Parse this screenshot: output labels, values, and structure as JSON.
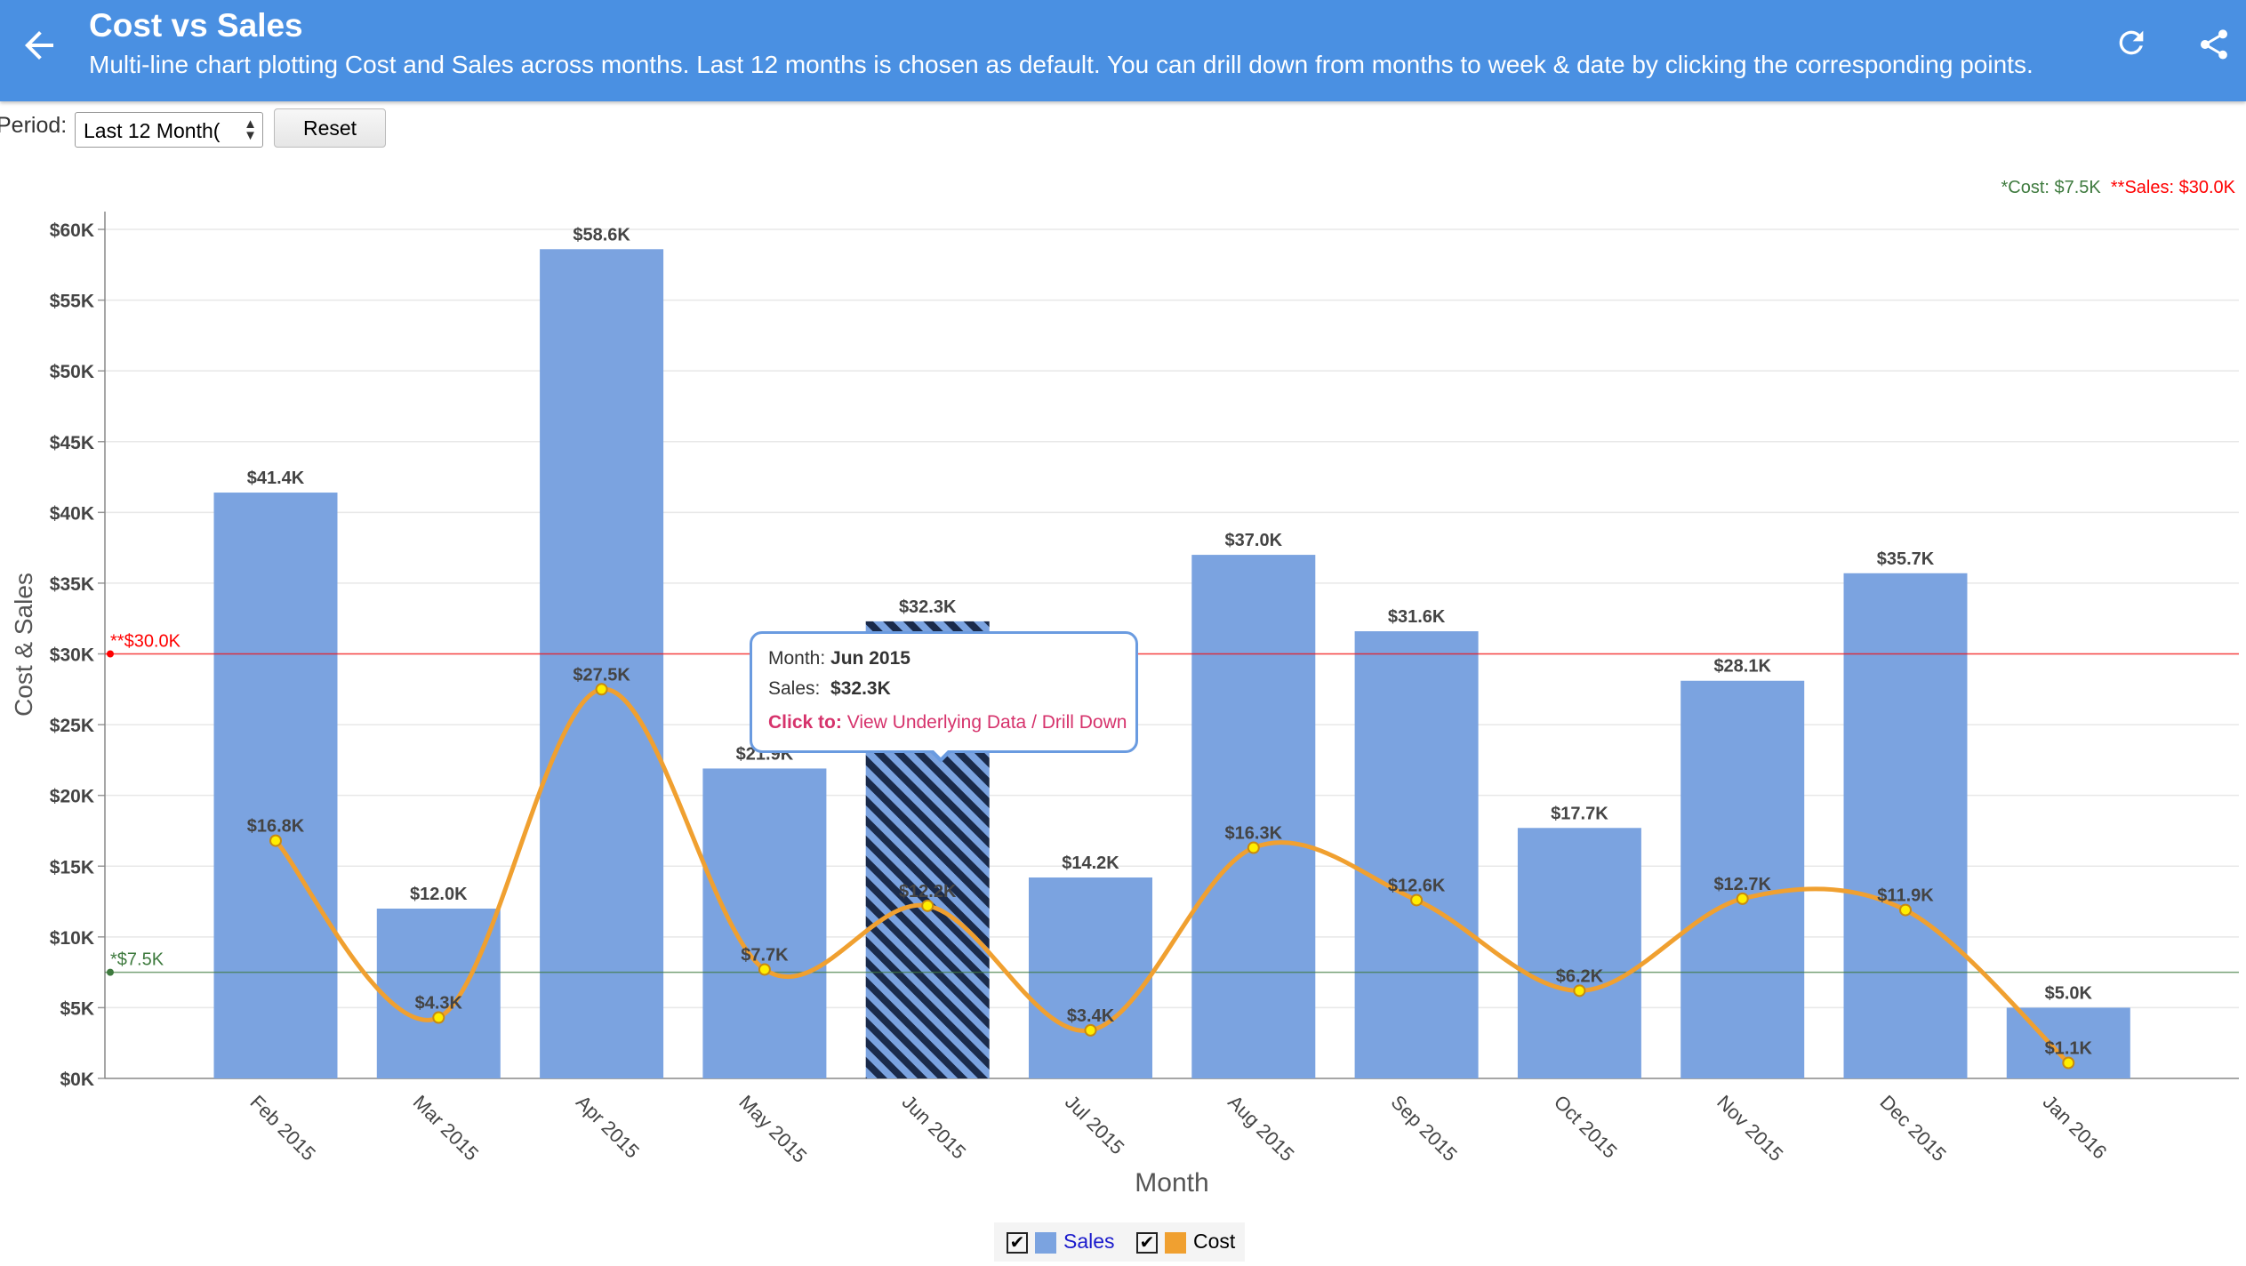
{
  "appbar": {
    "title": "Cost vs Sales",
    "subtitle": "Multi-line chart plotting Cost and Sales across months. Last 12 months is chosen as default. You can drill down from months to week & date by clicking the corresponding points.",
    "back_icon": "arrow-left-icon",
    "refresh_icon": "refresh-icon",
    "share_icon": "share-icon",
    "color": "#4a90e2"
  },
  "controls": {
    "period_label": "Period:",
    "period_value": "Last 12 Month(",
    "reset_label": "Reset"
  },
  "reference": {
    "cost_label": "*Cost: $7.5K",
    "sales_label": "**Sales: $30.0K",
    "cost_line_label": "*$7.5K",
    "sales_line_label": "**$30.0K"
  },
  "tooltip": {
    "month_key": "Month:",
    "month_val": "Jun 2015",
    "sales_key": "Sales:",
    "sales_val": "$32.3K",
    "click_key": "Click to:",
    "click_val": "View Underlying Data / Drill Down"
  },
  "legend": {
    "sales": "Sales",
    "cost": "Cost",
    "check": "✔"
  },
  "chart_data": {
    "type": "bar",
    "xlabel": "Month",
    "ylabel": "Cost & Sales",
    "ylim": [
      0,
      60000
    ],
    "ytick_labels": [
      "$0K",
      "$5K",
      "$10K",
      "$15K",
      "$20K",
      "$25K",
      "$30K",
      "$35K",
      "$40K",
      "$45K",
      "$50K",
      "$55K",
      "$60K"
    ],
    "categories": [
      "Feb 2015",
      "Mar 2015",
      "Apr 2015",
      "May 2015",
      "Jun 2015",
      "Jul 2015",
      "Aug 2015",
      "Sep 2015",
      "Oct 2015",
      "Nov 2015",
      "Dec 2015",
      "Jan 2016"
    ],
    "series": [
      {
        "name": "Sales",
        "type": "bar",
        "color": "#7ba3e0",
        "values": [
          41400,
          12000,
          58600,
          21900,
          32300,
          14200,
          37000,
          31600,
          17700,
          28100,
          35700,
          5000
        ],
        "labels": [
          "$41.4K",
          "$12.0K",
          "$58.6K",
          "$21.9K",
          "$32.3K",
          "$14.2K",
          "$37.0K",
          "$31.6K",
          "$17.7K",
          "$28.1K",
          "$35.7K",
          "$5.0K"
        ]
      },
      {
        "name": "Cost",
        "type": "line",
        "color": "#f0a030",
        "values": [
          16800,
          4300,
          27500,
          7700,
          12200,
          3400,
          16300,
          12600,
          6200,
          12700,
          11900,
          1100
        ],
        "labels": [
          "$16.8K",
          "$4.3K",
          "$27.5K",
          "$7.7K",
          "$12.2K",
          "$3.4K",
          "$16.3K",
          "$12.6K",
          "$6.2K",
          "$12.7K",
          "$11.9K",
          "$1.1K"
        ]
      }
    ],
    "reference_lines": [
      {
        "name": "Sales target",
        "value": 30000,
        "color": "#ff0000"
      },
      {
        "name": "Cost target",
        "value": 7500,
        "color": "#3e7a3e"
      }
    ],
    "highlighted_category": "Jun 2015",
    "grid": true
  }
}
